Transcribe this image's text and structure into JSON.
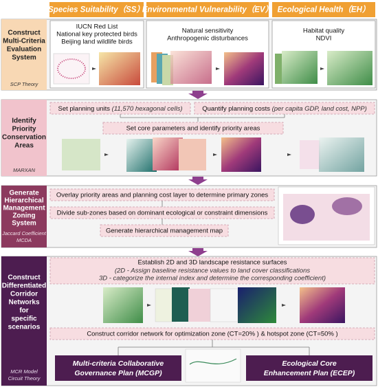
{
  "header": {
    "columns": [
      "Species Suitability（SS）",
      "Environmental Vulnerability（EV）",
      "Ecological Health（EH）"
    ]
  },
  "stage1": {
    "title": [
      "Construct",
      "Multi-Criteria",
      "Evaluation",
      "System"
    ],
    "method": [
      "SCP Theory"
    ],
    "ss_items": [
      "IUCN Red List",
      "National key protected birds",
      "Beijing land wildlife birds"
    ],
    "ev_items": [
      "Natural sensitivity",
      "Anthropogenic disturbances"
    ],
    "eh_items": [
      "Habitat quality",
      "NDVI"
    ]
  },
  "stage2": {
    "title": [
      "Identify",
      "Priority",
      "Conservation",
      "Areas"
    ],
    "method": [
      "MARXAN"
    ],
    "planning_units": {
      "text": "Set planning units",
      "note": "(11,570 hexagonal cells)"
    },
    "planning_costs": {
      "text": "Quantify planning costs",
      "note": "(per capita GDP, land cost, NPP)"
    },
    "core_parameters": "Set core parameters and identify priority areas"
  },
  "stage3": {
    "title": [
      "Generate",
      "Hierarchical",
      "Management",
      "Zoning",
      "System"
    ],
    "method": [
      "Jaccard Coefficient",
      "MCDA"
    ],
    "steps": [
      "Overlay priority areas and planning cost layer to determine primary zones",
      "Divide sub-zones based on dominant ecological or constraint dimensions",
      "Generate hierarchical management map"
    ]
  },
  "stage4": {
    "title": [
      "Construct",
      "Differentiated",
      "Corridor",
      "Networks",
      "for",
      "specific",
      "scenarios"
    ],
    "method": [
      "MCR Model",
      "Circuit Theory"
    ],
    "resistance": [
      "Establish 2D and 3D landscape resistance surfaces",
      "(2D - Assign baseline resistance values to land cover classifications",
      "3D - categorize the internal index and determine the corresponding coefficient)"
    ],
    "corridor": "Construct corridor network for optimization zone (CT=20% ) & hotspot zone (CT=50% )",
    "plans": [
      [
        "Multi-criteria Collaborative",
        "Governance Plan (MCGP)"
      ],
      [
        "Ecological Core",
        "Enhancement Plan (ECEP)"
      ]
    ]
  }
}
